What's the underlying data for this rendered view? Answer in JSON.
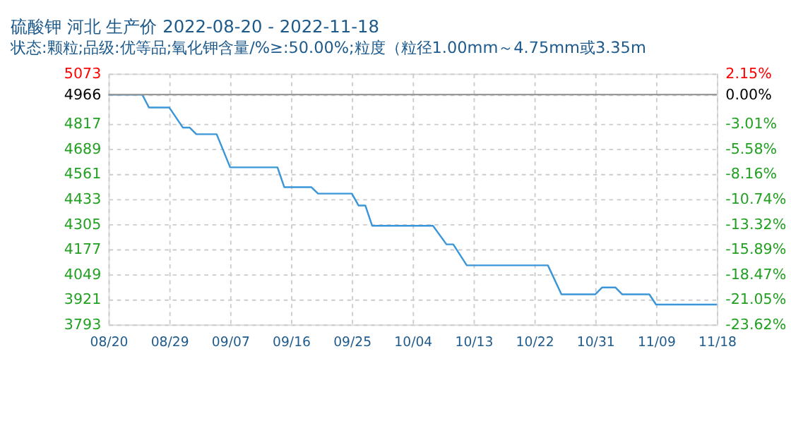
{
  "chart_data": {
    "type": "line",
    "title": "硫酸钾 河北 生产价 2022-08-20 - 2022-11-18",
    "subtitle": "状态:颗粒;品级:优等品;氧化钾含量/%≥:50.00%;粒度（粒径1.00mm～4.75mm或3.35m",
    "x": [
      "2022-08-20",
      "2022-08-25",
      "2022-08-26",
      "2022-08-29",
      "2022-08-31",
      "2022-09-01",
      "2022-09-02",
      "2022-09-05",
      "2022-09-07",
      "2022-09-14",
      "2022-09-15",
      "2022-09-19",
      "2022-09-20",
      "2022-09-25",
      "2022-09-26",
      "2022-09-27",
      "2022-09-28",
      "2022-10-07",
      "2022-10-09",
      "2022-10-10",
      "2022-10-12",
      "2022-10-24",
      "2022-10-26",
      "2022-10-31",
      "2022-11-01",
      "2022-11-03",
      "2022-11-04",
      "2022-11-08",
      "2022-11-09",
      "2022-11-18"
    ],
    "series": [
      {
        "color": "#3a96d8",
        "values": [
          4966,
          4966,
          4900,
          4900,
          4798,
          4798,
          4764,
          4764,
          4595,
          4595,
          4494,
          4494,
          4461,
          4461,
          4400,
          4400,
          4297,
          4297,
          4202,
          4202,
          4095,
          4095,
          3947,
          3947,
          3982,
          3982,
          3947,
          3947,
          3895,
          3895
        ]
      }
    ],
    "xlim": [
      "2022-08-20",
      "2022-11-18"
    ],
    "xticks": [
      {
        "value": "2022-08-20",
        "label": "08/20"
      },
      {
        "value": "2022-08-29",
        "label": "08/29"
      },
      {
        "value": "2022-09-07",
        "label": "09/07"
      },
      {
        "value": "2022-09-16",
        "label": "09/16"
      },
      {
        "value": "2022-09-25",
        "label": "09/25"
      },
      {
        "value": "2022-10-04",
        "label": "10/04"
      },
      {
        "value": "2022-10-13",
        "label": "10/13"
      },
      {
        "value": "2022-10-22",
        "label": "10/22"
      },
      {
        "value": "2022-10-31",
        "label": "10/31"
      },
      {
        "value": "2022-11-09",
        "label": "11/09"
      },
      {
        "value": "2022-11-18",
        "label": "11/18"
      }
    ],
    "ylim": [
      3793,
      5073
    ],
    "yticks": [
      3793,
      3921,
      4049,
      4177,
      4305,
      4433,
      4561,
      4689,
      4817,
      4966,
      5073
    ],
    "y2lim": [
      -23.62,
      2.15
    ],
    "y2ticks": [
      {
        "value": -23.62,
        "label": "-23.62%"
      },
      {
        "value": -21.05,
        "label": "-21.05%"
      },
      {
        "value": -18.47,
        "label": "-18.47%"
      },
      {
        "value": -15.89,
        "label": "-15.89%"
      },
      {
        "value": -13.32,
        "label": "-13.32%"
      },
      {
        "value": -10.74,
        "label": "-10.74%"
      },
      {
        "value": -8.16,
        "label": "-8.16%"
      },
      {
        "value": -5.58,
        "label": "-5.58%"
      },
      {
        "value": -3.01,
        "label": "-3.01%"
      },
      {
        "value": 0,
        "label": "0.00%"
      },
      {
        "value": 2.15,
        "label": "2.15%"
      }
    ],
    "ref_lines": [
      {
        "axis": "y2",
        "value": 0,
        "color": "#999999"
      }
    ],
    "grid": true,
    "marker": "none",
    "line_style": "solid"
  }
}
